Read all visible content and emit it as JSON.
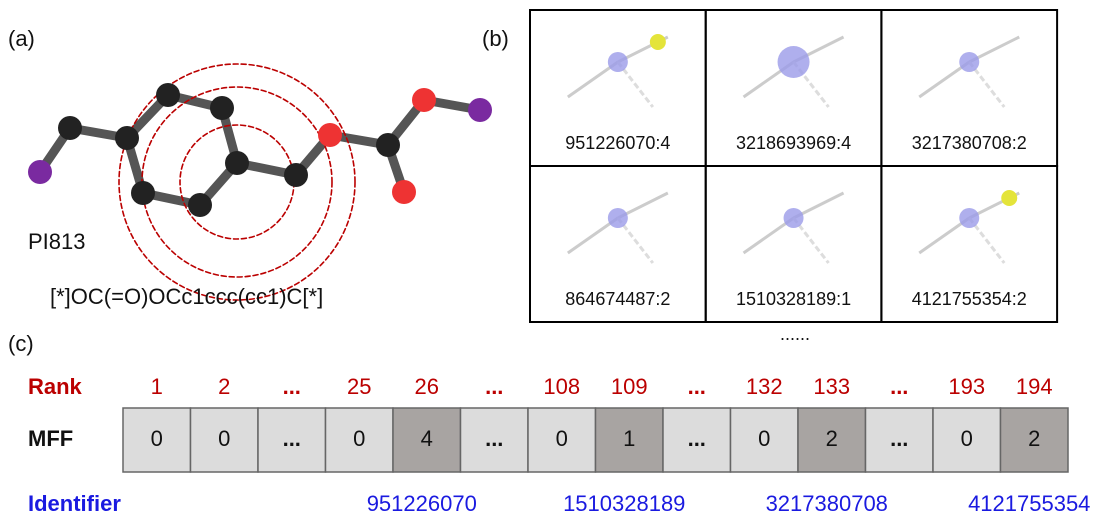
{
  "panels": {
    "a": "(a)",
    "b": "(b)",
    "c": "(c)"
  },
  "molecule": {
    "name": "PI813",
    "smiles": "[*]OC(=O)OCc1ccc(cc1)C[*]"
  },
  "fragments": {
    "labels": [
      "951226070:4",
      "3218693969:4",
      "3217380708:2",
      "864674487:2",
      "1510328189:1",
      "4121755354:2"
    ],
    "more": "......"
  },
  "mff": {
    "rank_label": "Rank",
    "mff_label": "MFF",
    "identifier_label": "Identifier",
    "ranks": [
      "1",
      "2",
      "...",
      "25",
      "26",
      "...",
      "108",
      "109",
      "...",
      "132",
      "133",
      "...",
      "193",
      "194"
    ],
    "values": [
      "0",
      "0",
      "...",
      "0",
      "4",
      "...",
      "0",
      "1",
      "...",
      "0",
      "2",
      "...",
      "0",
      "2"
    ],
    "identifiers": [
      "951226070",
      "1510328189",
      "3217380708",
      "4121755354"
    ]
  }
}
